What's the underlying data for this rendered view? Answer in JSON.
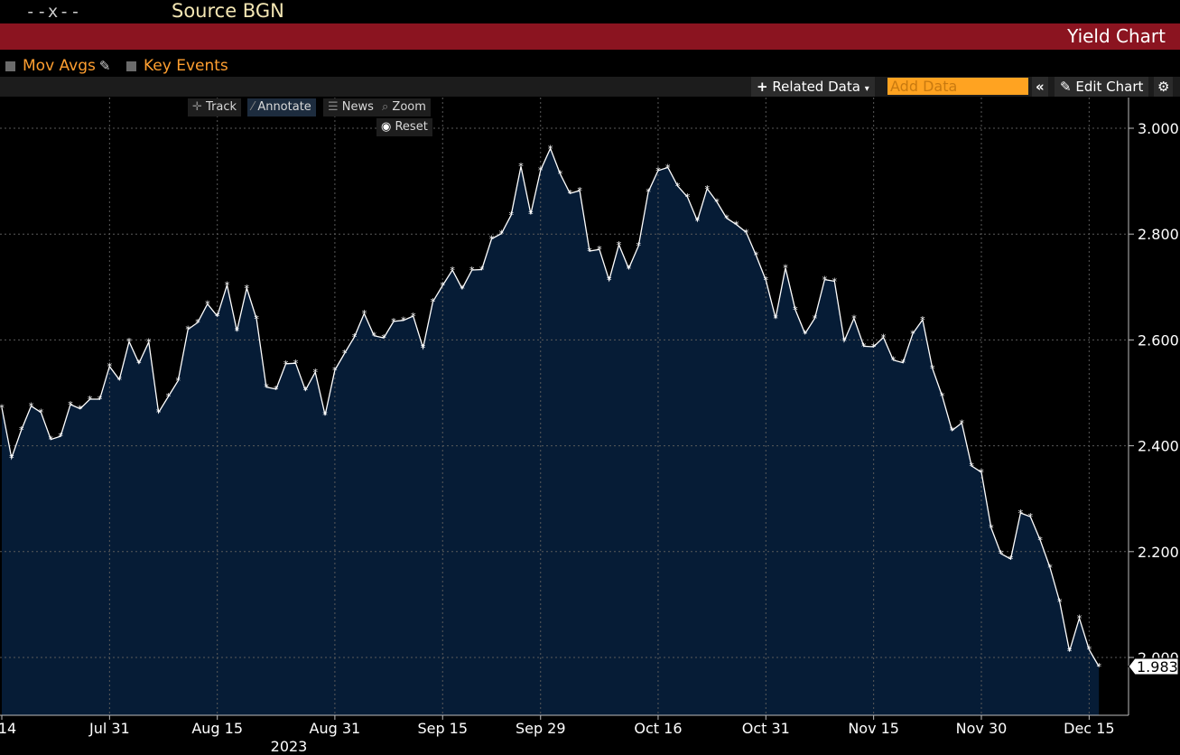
{
  "header": {
    "dashes": "--x--",
    "source": "Source BGN",
    "title": "Yield Chart"
  },
  "options": {
    "mov_avgs": "Mov Avgs",
    "key_events": "Key Events"
  },
  "toolbar": {
    "related_data": "Related Data",
    "add_data_placeholder": "Add Data",
    "edit_chart": "Edit Chart"
  },
  "chart_tools": {
    "track": "Track",
    "annotate": "Annotate",
    "news": "News",
    "zoom": "Zoom",
    "reset": "Reset"
  },
  "colors": {
    "header_bar": "#8b1420",
    "area_fill": "#061c36",
    "line": "#ffffff",
    "accent": "#ff9f30"
  },
  "chart_data": {
    "type": "area",
    "title": "",
    "xlabel": "",
    "ylabel": "",
    "ylim": [
      1.89,
      3.06
    ],
    "ticks_y": [
      "3.000",
      "2.800",
      "2.600",
      "2.400",
      "2.200",
      "2.000"
    ],
    "ticks_y_values": [
      3.0,
      2.8,
      2.6,
      2.4,
      2.2,
      2.0
    ],
    "ticks_x": [
      {
        "label": "14",
        "index": 0
      },
      {
        "label": "Jul 31",
        "index": 11
      },
      {
        "label": "Aug 15",
        "index": 22
      },
      {
        "label": "Aug 31",
        "index": 34
      },
      {
        "label": "Sep 15",
        "index": 45
      },
      {
        "label": "Sep 29",
        "index": 55
      },
      {
        "label": "Oct 16",
        "index": 67
      },
      {
        "label": "Oct 31",
        "index": 78
      },
      {
        "label": "Nov 15",
        "index": 89
      },
      {
        "label": "Nov 30",
        "index": 100
      },
      {
        "label": "Dec 15",
        "index": 111
      }
    ],
    "year_label": "2023",
    "last_value_label": "1.983",
    "series": [
      {
        "values": [
          2.472,
          2.377,
          2.43,
          2.475,
          2.463,
          2.412,
          2.418,
          2.478,
          2.47,
          2.488,
          2.488,
          2.55,
          2.525,
          2.597,
          2.556,
          2.596,
          2.463,
          2.493,
          2.523,
          2.62,
          2.633,
          2.668,
          2.645,
          2.704,
          2.617,
          2.698,
          2.64,
          2.511,
          2.507,
          2.555,
          2.556,
          2.505,
          2.539,
          2.458,
          2.543,
          2.575,
          2.606,
          2.65,
          2.608,
          2.604,
          2.635,
          2.637,
          2.645,
          2.585,
          2.672,
          2.703,
          2.732,
          2.697,
          2.732,
          2.733,
          2.791,
          2.801,
          2.836,
          2.928,
          2.838,
          2.921,
          2.962,
          2.914,
          2.877,
          2.882,
          2.768,
          2.771,
          2.713,
          2.78,
          2.735,
          2.778,
          2.88,
          2.92,
          2.926,
          2.891,
          2.87,
          2.825,
          2.886,
          2.861,
          2.83,
          2.818,
          2.803,
          2.76,
          2.713,
          2.641,
          2.736,
          2.657,
          2.612,
          2.641,
          2.714,
          2.711,
          2.598,
          2.641,
          2.588,
          2.587,
          2.605,
          2.562,
          2.557,
          2.612,
          2.638,
          2.546,
          2.494,
          2.429,
          2.443,
          2.362,
          2.35,
          2.245,
          2.196,
          2.186,
          2.273,
          2.266,
          2.222,
          2.17,
          2.105,
          2.012,
          2.074,
          2.015,
          1.983
        ]
      }
    ]
  }
}
